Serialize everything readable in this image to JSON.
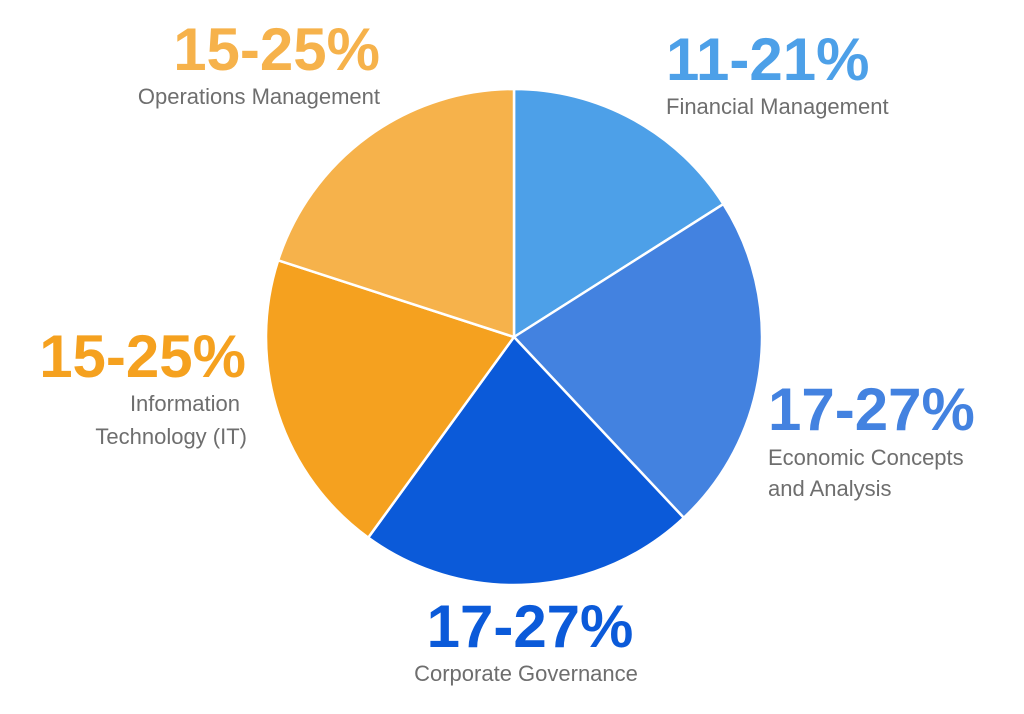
{
  "chart_data": {
    "type": "pie",
    "slices": [
      {
        "range_label": "11-21%",
        "label_lines": [
          "Financial Management"
        ],
        "value": 16,
        "color": "#4da0e8"
      },
      {
        "range_label": "17-27%",
        "label_lines": [
          "Economic Concepts",
          "and Analysis"
        ],
        "value": 22,
        "color": "#4382e0"
      },
      {
        "range_label": "17-27%",
        "label_lines": [
          "Corporate Governance"
        ],
        "value": 22,
        "color": "#0b5ad9"
      },
      {
        "range_label": "15-25%",
        "label_lines": [
          "Information",
          "Technology (IT)"
        ],
        "value": 20,
        "color": "#f5a11f"
      },
      {
        "range_label": "15-25%",
        "label_lines": [
          "Operations Management"
        ],
        "value": 20,
        "color": "#f6b24b"
      }
    ]
  }
}
